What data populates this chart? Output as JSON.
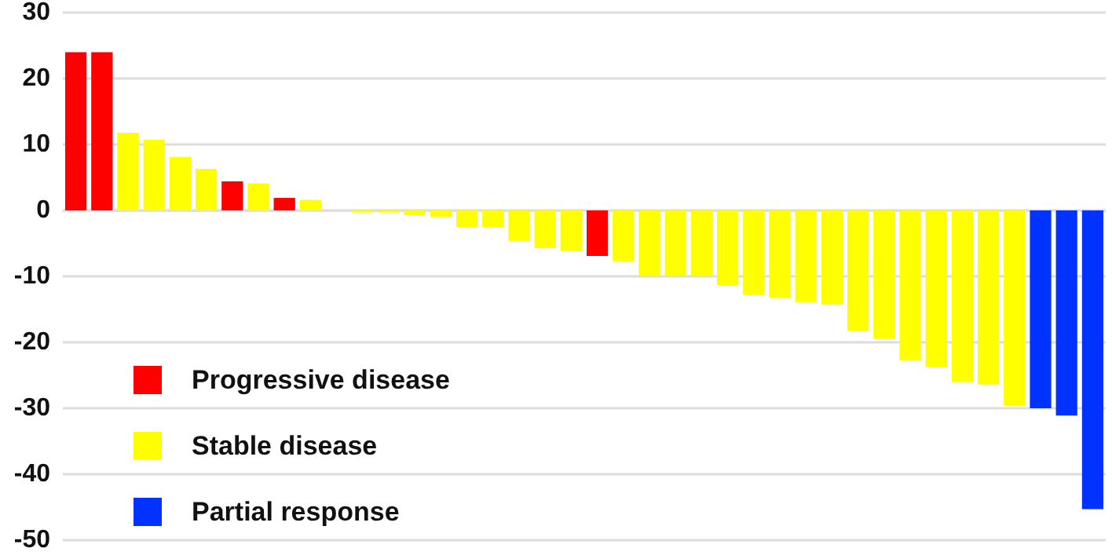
{
  "chart_data": {
    "type": "bar",
    "stacked": true,
    "categories": [
      null,
      null,
      null,
      null,
      null,
      null,
      null,
      null,
      null,
      null,
      null,
      null,
      null,
      null,
      null,
      null,
      null,
      null,
      null,
      null,
      null,
      null,
      null,
      null,
      null,
      null,
      null,
      null,
      null,
      null,
      null,
      null,
      null,
      null,
      null,
      null,
      null,
      null,
      null,
      null
    ],
    "series": [
      {
        "name": "Progressive disease",
        "color": "#ff0000",
        "values": [
          24,
          24,
          null,
          null,
          null,
          null,
          4.4,
          null,
          1.9,
          null,
          null,
          null,
          null,
          null,
          null,
          null,
          null,
          null,
          null,
          null,
          -6.9,
          null,
          null,
          null,
          null,
          null,
          null,
          null,
          null,
          null,
          null,
          null,
          null,
          null,
          null,
          null,
          null,
          null,
          null,
          null
        ]
      },
      {
        "name": "Stable disease",
        "color": "#ffff00",
        "values": [
          null,
          null,
          11.8,
          10.7,
          8.1,
          6.3,
          null,
          4.1,
          null,
          1.6,
          0,
          -0.3,
          -0.3,
          -0.7,
          -1,
          -2.5,
          -2.5,
          -4.6,
          -5.7,
          -6.1,
          null,
          -7.7,
          -9.9,
          -9.9,
          -9.9,
          -11.3,
          -12.8,
          -13.2,
          -13.9,
          -14.3,
          -18.2,
          -19.4,
          -22.7,
          -23.7,
          -26,
          -26.4,
          -29.6,
          null,
          null,
          null
        ]
      },
      {
        "name": "Partial response",
        "color": "#0033ff",
        "values": [
          null,
          null,
          null,
          null,
          null,
          null,
          null,
          null,
          null,
          null,
          null,
          null,
          null,
          null,
          null,
          null,
          null,
          null,
          null,
          null,
          null,
          null,
          null,
          null,
          null,
          null,
          null,
          null,
          null,
          null,
          null,
          null,
          null,
          null,
          null,
          null,
          null,
          -30,
          -31.1,
          -45.3
        ]
      }
    ],
    "ylim": [
      -50,
      30
    ],
    "yticks": [
      -50,
      -40,
      -30,
      -20,
      -10,
      0,
      10,
      20,
      30
    ],
    "grid": "y",
    "legend": "bottom left"
  }
}
